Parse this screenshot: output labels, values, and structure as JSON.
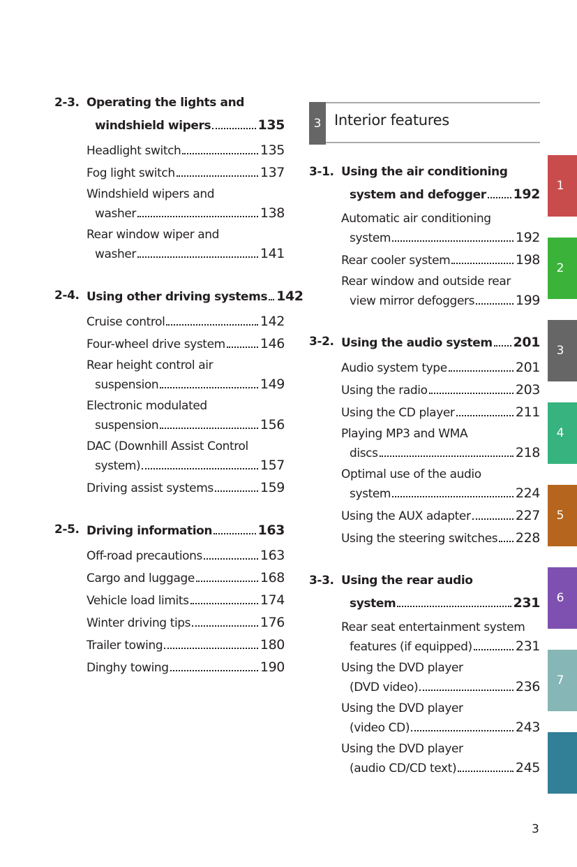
{
  "left_column": [
    {
      "number": "2-3.",
      "title_lines": [
        "Operating the lights and",
        "windshield wipers"
      ],
      "page": "135",
      "entries": [
        {
          "lines": [
            "Headlight switch"
          ],
          "page": "135"
        },
        {
          "lines": [
            "Fog light switch"
          ],
          "page": "137"
        },
        {
          "lines": [
            "Windshield wipers and",
            "washer"
          ],
          "page": "138"
        },
        {
          "lines": [
            "Rear window wiper and",
            "washer"
          ],
          "page": "141"
        }
      ]
    },
    {
      "number": "2-4.",
      "title_lines": [
        "Using other driving systems"
      ],
      "page": "142",
      "entries": [
        {
          "lines": [
            "Cruise control"
          ],
          "page": "142"
        },
        {
          "lines": [
            "Four-wheel drive system"
          ],
          "page": "146"
        },
        {
          "lines": [
            "Rear height control air",
            "suspension"
          ],
          "page": "149"
        },
        {
          "lines": [
            "Electronic modulated",
            "suspension"
          ],
          "page": "156"
        },
        {
          "lines": [
            "DAC (Downhill Assist Control",
            "system)"
          ],
          "page": "157"
        },
        {
          "lines": [
            "Driving assist systems"
          ],
          "page": "159"
        }
      ]
    },
    {
      "number": "2-5.",
      "title_lines": [
        "Driving information"
      ],
      "page": "163",
      "entries": [
        {
          "lines": [
            "Off-road precautions"
          ],
          "page": "163"
        },
        {
          "lines": [
            "Cargo and luggage"
          ],
          "page": "168"
        },
        {
          "lines": [
            "Vehicle load limits"
          ],
          "page": "174"
        },
        {
          "lines": [
            "Winter driving tips"
          ],
          "page": "176"
        },
        {
          "lines": [
            "Trailer towing"
          ],
          "page": "180"
        },
        {
          "lines": [
            "Dinghy towing"
          ],
          "page": "190"
        }
      ]
    }
  ],
  "chapter_header": {
    "number": "3",
    "title": "Interior features",
    "color": "#666666"
  },
  "right_column": [
    {
      "number": "3-1.",
      "title_lines": [
        "Using the air conditioning",
        "system and defogger"
      ],
      "page": "192",
      "entries": [
        {
          "lines": [
            "Automatic air conditioning",
            "system"
          ],
          "page": "192"
        },
        {
          "lines": [
            "Rear cooler system"
          ],
          "page": "198"
        },
        {
          "lines": [
            "Rear window and outside rear",
            "view mirror defoggers"
          ],
          "page": "199"
        }
      ]
    },
    {
      "number": "3-2.",
      "title_lines": [
        "Using the audio system"
      ],
      "page": "201",
      "entries": [
        {
          "lines": [
            "Audio system type"
          ],
          "page": "201"
        },
        {
          "lines": [
            "Using the radio"
          ],
          "page": "203"
        },
        {
          "lines": [
            "Using the CD player"
          ],
          "page": "211"
        },
        {
          "lines": [
            "Playing MP3 and WMA",
            "discs"
          ],
          "page": "218"
        },
        {
          "lines": [
            "Optimal use of the audio",
            "system"
          ],
          "page": "224"
        },
        {
          "lines": [
            "Using the AUX adapter"
          ],
          "page": "227"
        },
        {
          "lines": [
            "Using the steering switches"
          ],
          "page": "228"
        }
      ]
    },
    {
      "number": "3-3.",
      "title_lines": [
        "Using the rear audio",
        "system"
      ],
      "page": "231",
      "entries": [
        {
          "lines": [
            "Rear seat entertainment system",
            "features (if equipped)"
          ],
          "page": "231"
        },
        {
          "lines": [
            "Using the DVD player",
            "(DVD video)"
          ],
          "page": "236"
        },
        {
          "lines": [
            "Using the DVD player",
            "(video CD)"
          ],
          "page": "243"
        },
        {
          "lines": [
            "Using the DVD player",
            "(audio CD/CD text)"
          ],
          "page": "245"
        }
      ]
    }
  ],
  "side_tabs": [
    {
      "label": "1",
      "color": "#c94c4c"
    },
    {
      "label": "2",
      "color": "#3bb33b"
    },
    {
      "label": "3",
      "color": "#666666"
    },
    {
      "label": "4",
      "color": "#36b37e"
    },
    {
      "label": "5",
      "color": "#b5651e"
    },
    {
      "label": "6",
      "color": "#7e50b0"
    },
    {
      "label": "7",
      "color": "#86b6b6"
    },
    {
      "label": "",
      "color": "#327f98"
    }
  ],
  "page_number": "3"
}
